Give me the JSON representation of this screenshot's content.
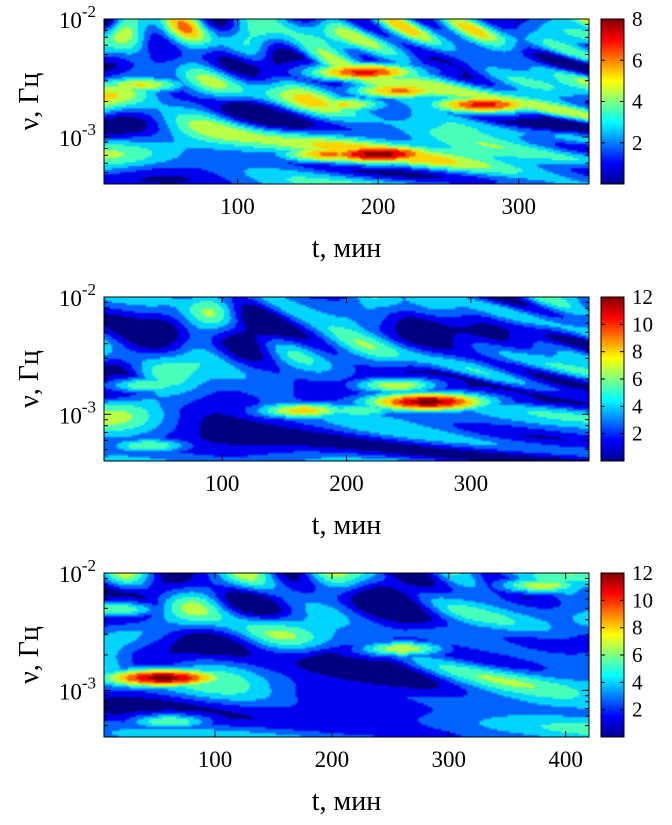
{
  "chart_data": [
    {
      "type": "heatmap",
      "xlabel": "t, мин",
      "ylabel": "ν, Гц",
      "y_scale": "log",
      "xlim": [
        5,
        350
      ],
      "ylim": [
        0.0004,
        0.01
      ],
      "x_ticks": [
        100,
        200,
        300
      ],
      "y_ticks": [
        {
          "label": "10",
          "exp": "-3"
        },
        {
          "label": "10",
          "exp": "-2"
        }
      ],
      "colorbar": {
        "min": 0,
        "max": 8,
        "ticks": [
          2,
          4,
          6,
          8
        ]
      },
      "peaks": [
        {
          "t": 200,
          "nu": 0.00072,
          "value": 8
        },
        {
          "t": 165,
          "nu": 0.00072,
          "value": 6
        },
        {
          "t": 275,
          "nu": 0.0019,
          "value": 7
        },
        {
          "t": 190,
          "nu": 0.0036,
          "value": 7
        },
        {
          "t": 215,
          "nu": 0.0025,
          "value": 6
        },
        {
          "t": 175,
          "nu": 0.0019,
          "value": 5
        },
        {
          "t": 30,
          "nu": 0.0028,
          "value": 5
        }
      ]
    },
    {
      "type": "heatmap",
      "xlabel": "t, мин",
      "ylabel": "ν, Гц",
      "y_scale": "log",
      "xlim": [
        5,
        395
      ],
      "ylim": [
        0.0004,
        0.01
      ],
      "x_ticks": [
        100,
        200,
        300
      ],
      "y_ticks": [
        {
          "label": "10",
          "exp": "-3"
        },
        {
          "label": "10",
          "exp": "-2"
        }
      ],
      "colorbar": {
        "min": 0,
        "max": 12,
        "ticks": [
          2,
          4,
          6,
          8,
          10,
          12
        ]
      },
      "peaks": [
        {
          "t": 265,
          "nu": 0.0013,
          "value": 12
        },
        {
          "t": 165,
          "nu": 0.0011,
          "value": 8
        },
        {
          "t": 40,
          "nu": 0.00055,
          "value": 6
        },
        {
          "t": 40,
          "nu": 0.0018,
          "value": 6
        },
        {
          "t": 240,
          "nu": 0.0018,
          "value": 7
        },
        {
          "t": 210,
          "nu": 0.0011,
          "value": 6
        }
      ]
    },
    {
      "type": "heatmap",
      "xlabel": "t, мин",
      "ylabel": "ν, Гц",
      "y_scale": "log",
      "xlim": [
        5,
        420
      ],
      "ylim": [
        0.0004,
        0.01
      ],
      "x_ticks": [
        100,
        200,
        300,
        400
      ],
      "y_ticks": [
        {
          "label": "10",
          "exp": "-3"
        },
        {
          "label": "10",
          "exp": "-2"
        }
      ],
      "colorbar": {
        "min": 0,
        "max": 12,
        "ticks": [
          2,
          4,
          6,
          8,
          10,
          12
        ]
      },
      "peaks": [
        {
          "t": 55,
          "nu": 0.0013,
          "value": 12
        },
        {
          "t": 60,
          "nu": 0.00055,
          "value": 6
        },
        {
          "t": 260,
          "nu": 0.0023,
          "value": 7
        },
        {
          "t": 15,
          "nu": 0.005,
          "value": 6
        },
        {
          "t": 380,
          "nu": 0.008,
          "value": 7
        }
      ]
    }
  ]
}
